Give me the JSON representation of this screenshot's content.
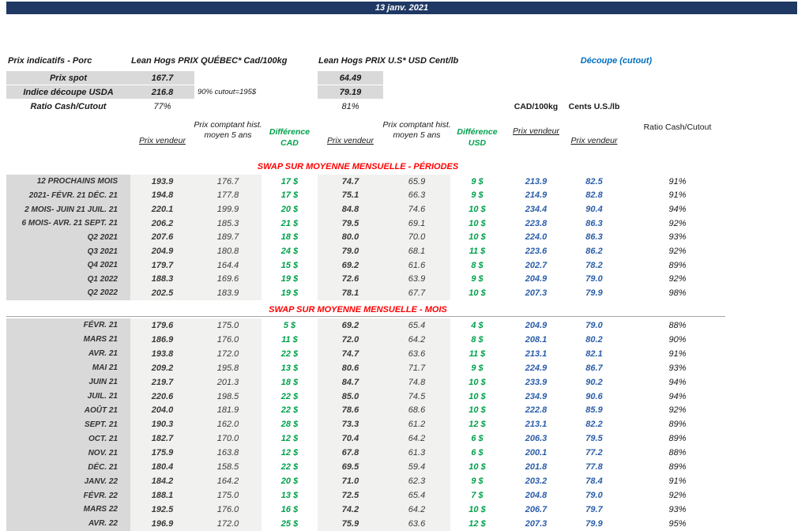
{
  "titlebar": {
    "date": "13 janv. 2021"
  },
  "info": {
    "sheet_title": "Prix indicatifs - Porc",
    "qc_group": "Lean Hogs PRIX QUÉBEC* Cad/100kg",
    "us_group": "Lean Hogs PRIX U.S* USD Cent/lb",
    "cutout_group": "Découpe (cutout)",
    "spot": {
      "label": "Prix spot",
      "qc": "167.7",
      "us": "64.49"
    },
    "usda": {
      "label": "Indice découpe USDA",
      "qc": "216.8",
      "note": "90% cutout=195$",
      "us": "79.19"
    },
    "ratio": {
      "label": "Ratio Cash/Cutout",
      "qc": "77%",
      "us": "81%"
    },
    "cad_unit": "CAD/100kg",
    "us_unit": "Cents U.S./lb"
  },
  "table": {
    "headers": {
      "qc_vendeur": "Prix vendeur",
      "qc_hist": "Prix comptant hist. moyen 5 ans",
      "diff_cad": "Différence CAD",
      "us_vendeur": "Prix vendeur",
      "us_hist": "Prix comptant hist. moyen 5 ans",
      "diff_usd": "Différence USD",
      "cad_vendeur": "Prix vendeur",
      "cents_vendeur": "Prix vendeur",
      "ratio": "Ratio Cash/Cutout"
    },
    "sections": [
      {
        "title": "SWAP SUR MOYENNE MENSUELLE - PÉRIODES",
        "rows": [
          {
            "label": "12 PROCHAINS MOIS",
            "qc_vendeur": "193.9",
            "qc_hist": "176.7",
            "diff_cad": "17 $",
            "us_vendeur": "74.7",
            "us_hist": "65.9",
            "diff_usd": "9 $",
            "cad_vendeur": "213.9",
            "cents_vendeur": "82.5",
            "ratio": "91%"
          },
          {
            "label": "2021- FÉVR. 21 DÉC. 21",
            "qc_vendeur": "194.8",
            "qc_hist": "177.8",
            "diff_cad": "17 $",
            "us_vendeur": "75.1",
            "us_hist": "66.3",
            "diff_usd": "9 $",
            "cad_vendeur": "214.9",
            "cents_vendeur": "82.8",
            "ratio": "91%"
          },
          {
            "label": "2 MOIS- JUIN 21 JUIL. 21",
            "qc_vendeur": "220.1",
            "qc_hist": "199.9",
            "diff_cad": "20 $",
            "us_vendeur": "84.8",
            "us_hist": "74.6",
            "diff_usd": "10 $",
            "cad_vendeur": "234.4",
            "cents_vendeur": "90.4",
            "ratio": "94%"
          },
          {
            "label": "6 MOIS- AVR. 21 SEPT. 21",
            "qc_vendeur": "206.2",
            "qc_hist": "185.3",
            "diff_cad": "21 $",
            "us_vendeur": "79.5",
            "us_hist": "69.1",
            "diff_usd": "10 $",
            "cad_vendeur": "223.8",
            "cents_vendeur": "86.3",
            "ratio": "92%"
          },
          {
            "label": "Q2 2021",
            "qc_vendeur": "207.6",
            "qc_hist": "189.7",
            "diff_cad": "18 $",
            "us_vendeur": "80.0",
            "us_hist": "70.0",
            "diff_usd": "10 $",
            "cad_vendeur": "224.0",
            "cents_vendeur": "86.3",
            "ratio": "93%"
          },
          {
            "label": "Q3 2021",
            "qc_vendeur": "204.9",
            "qc_hist": "180.8",
            "diff_cad": "24 $",
            "us_vendeur": "79.0",
            "us_hist": "68.1",
            "diff_usd": "11 $",
            "cad_vendeur": "223.6",
            "cents_vendeur": "86.2",
            "ratio": "92%"
          },
          {
            "label": "Q4 2021",
            "qc_vendeur": "179.7",
            "qc_hist": "164.4",
            "diff_cad": "15 $",
            "us_vendeur": "69.2",
            "us_hist": "61.6",
            "diff_usd": "8 $",
            "cad_vendeur": "202.7",
            "cents_vendeur": "78.2",
            "ratio": "89%"
          },
          {
            "label": "Q1 2022",
            "qc_vendeur": "188.3",
            "qc_hist": "169.6",
            "diff_cad": "19 $",
            "us_vendeur": "72.6",
            "us_hist": "63.9",
            "diff_usd": "9 $",
            "cad_vendeur": "204.9",
            "cents_vendeur": "79.0",
            "ratio": "92%"
          },
          {
            "label": "Q2 2022",
            "qc_vendeur": "202.5",
            "qc_hist": "183.9",
            "diff_cad": "19 $",
            "us_vendeur": "78.1",
            "us_hist": "67.7",
            "diff_usd": "10 $",
            "cad_vendeur": "207.3",
            "cents_vendeur": "79.9",
            "ratio": "98%"
          }
        ]
      },
      {
        "title": "SWAP SUR MOYENNE MENSUELLE - MOIS",
        "rows": [
          {
            "label": "FÉVR. 21",
            "qc_vendeur": "179.6",
            "qc_hist": "175.0",
            "diff_cad": "5 $",
            "us_vendeur": "69.2",
            "us_hist": "65.4",
            "diff_usd": "4 $",
            "cad_vendeur": "204.9",
            "cents_vendeur": "79.0",
            "ratio": "88%"
          },
          {
            "label": "MARS 21",
            "qc_vendeur": "186.9",
            "qc_hist": "176.0",
            "diff_cad": "11 $",
            "us_vendeur": "72.0",
            "us_hist": "64.2",
            "diff_usd": "8 $",
            "cad_vendeur": "208.1",
            "cents_vendeur": "80.2",
            "ratio": "90%"
          },
          {
            "label": "AVR. 21",
            "qc_vendeur": "193.8",
            "qc_hist": "172.0",
            "diff_cad": "22 $",
            "us_vendeur": "74.7",
            "us_hist": "63.6",
            "diff_usd": "11 $",
            "cad_vendeur": "213.1",
            "cents_vendeur": "82.1",
            "ratio": "91%"
          },
          {
            "label": "MAI 21",
            "qc_vendeur": "209.2",
            "qc_hist": "195.8",
            "diff_cad": "13 $",
            "us_vendeur": "80.6",
            "us_hist": "71.7",
            "diff_usd": "9 $",
            "cad_vendeur": "224.9",
            "cents_vendeur": "86.7",
            "ratio": "93%"
          },
          {
            "label": "JUIN 21",
            "qc_vendeur": "219.7",
            "qc_hist": "201.3",
            "diff_cad": "18 $",
            "us_vendeur": "84.7",
            "us_hist": "74.8",
            "diff_usd": "10 $",
            "cad_vendeur": "233.9",
            "cents_vendeur": "90.2",
            "ratio": "94%"
          },
          {
            "label": "JUIL. 21",
            "qc_vendeur": "220.6",
            "qc_hist": "198.5",
            "diff_cad": "22 $",
            "us_vendeur": "85.0",
            "us_hist": "74.5",
            "diff_usd": "10 $",
            "cad_vendeur": "234.9",
            "cents_vendeur": "90.6",
            "ratio": "94%"
          },
          {
            "label": "AOÛT 21",
            "qc_vendeur": "204.0",
            "qc_hist": "181.9",
            "diff_cad": "22 $",
            "us_vendeur": "78.6",
            "us_hist": "68.6",
            "diff_usd": "10 $",
            "cad_vendeur": "222.8",
            "cents_vendeur": "85.9",
            "ratio": "92%"
          },
          {
            "label": "SEPT. 21",
            "qc_vendeur": "190.3",
            "qc_hist": "162.0",
            "diff_cad": "28 $",
            "us_vendeur": "73.3",
            "us_hist": "61.2",
            "diff_usd": "12 $",
            "cad_vendeur": "213.1",
            "cents_vendeur": "82.2",
            "ratio": "89%"
          },
          {
            "label": "OCT. 21",
            "qc_vendeur": "182.7",
            "qc_hist": "170.0",
            "diff_cad": "12 $",
            "us_vendeur": "70.4",
            "us_hist": "64.2",
            "diff_usd": "6 $",
            "cad_vendeur": "206.3",
            "cents_vendeur": "79.5",
            "ratio": "89%"
          },
          {
            "label": "NOV. 21",
            "qc_vendeur": "175.9",
            "qc_hist": "163.8",
            "diff_cad": "12 $",
            "us_vendeur": "67.8",
            "us_hist": "61.3",
            "diff_usd": "6 $",
            "cad_vendeur": "200.1",
            "cents_vendeur": "77.2",
            "ratio": "88%"
          },
          {
            "label": "DÉC. 21",
            "qc_vendeur": "180.4",
            "qc_hist": "158.5",
            "diff_cad": "22 $",
            "us_vendeur": "69.5",
            "us_hist": "59.4",
            "diff_usd": "10 $",
            "cad_vendeur": "201.8",
            "cents_vendeur": "77.8",
            "ratio": "89%"
          },
          {
            "label": "JANV. 22",
            "qc_vendeur": "184.2",
            "qc_hist": "164.2",
            "diff_cad": "20 $",
            "us_vendeur": "71.0",
            "us_hist": "62.3",
            "diff_usd": "9 $",
            "cad_vendeur": "203.2",
            "cents_vendeur": "78.4",
            "ratio": "91%"
          },
          {
            "label": "FÉVR. 22",
            "qc_vendeur": "188.1",
            "qc_hist": "175.0",
            "diff_cad": "13 $",
            "us_vendeur": "72.5",
            "us_hist": "65.4",
            "diff_usd": "7 $",
            "cad_vendeur": "204.8",
            "cents_vendeur": "79.0",
            "ratio": "92%"
          },
          {
            "label": "MARS 22",
            "qc_vendeur": "192.5",
            "qc_hist": "176.0",
            "diff_cad": "16 $",
            "us_vendeur": "74.2",
            "us_hist": "64.2",
            "diff_usd": "10 $",
            "cad_vendeur": "206.7",
            "cents_vendeur": "79.7",
            "ratio": "93%"
          },
          {
            "label": "AVR. 22",
            "qc_vendeur": "196.9",
            "qc_hist": "172.0",
            "diff_cad": "25 $",
            "us_vendeur": "75.9",
            "us_hist": "63.6",
            "diff_usd": "12 $",
            "cad_vendeur": "207.3",
            "cents_vendeur": "79.9",
            "ratio": "95%"
          }
        ]
      }
    ]
  },
  "colors": {
    "navy": "#1f3864",
    "red": "#ff0000",
    "green": "#00a14b",
    "blue": "#2a5da9",
    "blue_bright": "#0070c0",
    "gray_dark": "#d9d9d9",
    "gray_light": "#f1f1f0"
  }
}
